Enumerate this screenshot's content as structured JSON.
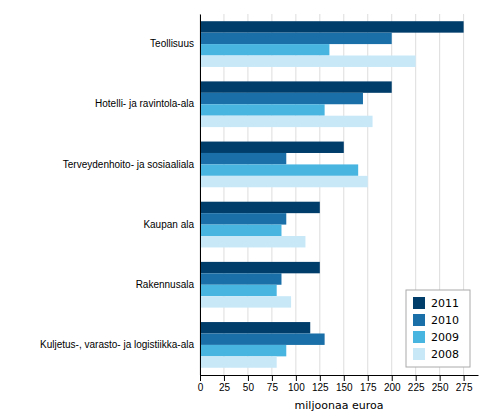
{
  "chart_data": {
    "type": "bar",
    "orientation": "horizontal",
    "categories": [
      "Teollisuus",
      "Hotelli- ja ravintola-ala",
      "Terveydenhoito- ja sosiaaliala",
      "Kaupan ala",
      "Rakennusala",
      "Kuljetus-, varasto- ja logistiikka-ala"
    ],
    "series": [
      {
        "name": "2011",
        "color": "#003d6b",
        "values": [
          275,
          200,
          150,
          125,
          125,
          115
        ]
      },
      {
        "name": "2010",
        "color": "#1a6fa8",
        "values": [
          200,
          170,
          90,
          90,
          85,
          130
        ]
      },
      {
        "name": "2009",
        "color": "#48b4e0",
        "values": [
          135,
          130,
          165,
          85,
          80,
          90
        ]
      },
      {
        "name": "2008",
        "color": "#c8e8f8",
        "values": [
          225,
          180,
          175,
          110,
          95,
          80
        ]
      }
    ],
    "xlabel": "miljoonaa euroa",
    "xlim": [
      0,
      290
    ],
    "xticks": [
      0,
      25,
      50,
      75,
      100,
      125,
      150,
      175,
      200,
      225,
      250,
      275
    ],
    "grid": true,
    "legend": "lower right"
  }
}
